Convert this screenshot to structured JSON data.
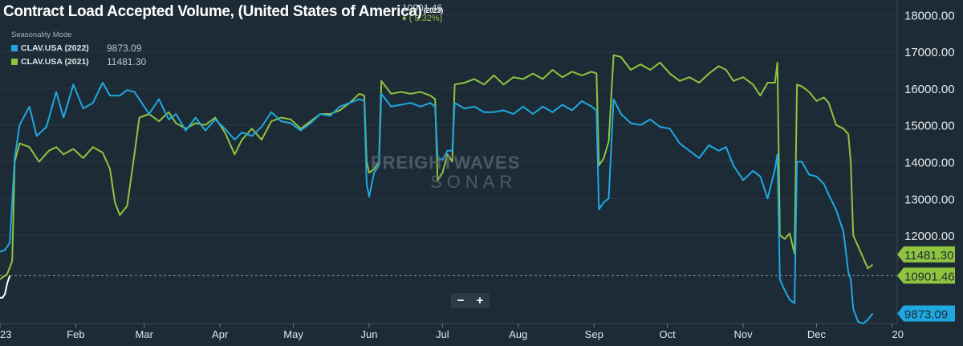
{
  "title": "Contract Load Accepted Volume, (United States of America)",
  "title_year": "(2023)",
  "headline": {
    "value": "10901.46",
    "change": "( 5.32%)",
    "change_icon": "up-arrow-icon"
  },
  "legend": {
    "mode_label": "Seasonality Mode",
    "items": [
      {
        "name": "CLAV.USA (2022)",
        "value": "9873.09",
        "color": "#1fa8e0"
      },
      {
        "name": "CLAV.USA (2021)",
        "value": "11481.30",
        "color": "#8fc43f"
      }
    ]
  },
  "zoom": {
    "minus": "−",
    "plus": "+"
  },
  "watermark": {
    "line1": "FREIGHTWAVES",
    "line2": "SONAR"
  },
  "colors": {
    "background": "#1d2b36",
    "series2023": "#ffffff",
    "series2022": "#1fa8e0",
    "series2021": "#8fc43f",
    "grid": "#2a3a46"
  },
  "chart_data": {
    "type": "line",
    "x_tick_labels": [
      "23",
      "Feb",
      "Mar",
      "Apr",
      "May",
      "Jun",
      "Jul",
      "Aug",
      "Sep",
      "Oct",
      "Nov",
      "Dec",
      "20"
    ],
    "x_tick_days": [
      0,
      31,
      59,
      90,
      120,
      151,
      181,
      212,
      243,
      273,
      304,
      334,
      365
    ],
    "y_tick_labels": [
      "18000.00",
      "17000.00",
      "16000.00",
      "15000.00",
      "14000.00",
      "13000.00",
      "12000.00"
    ],
    "y_ticks": [
      18000,
      17000,
      16000,
      15000,
      14000,
      13000,
      12000
    ],
    "y_label_partial": "1",
    "ylim": [
      9600,
      18400
    ],
    "xlim": [
      0,
      367
    ],
    "grid": "horizontal",
    "reference_line": 10901.46,
    "badges": [
      {
        "text": "11481.30",
        "value": 11481.3,
        "color": "#8fc43f"
      },
      {
        "text": "10901.46",
        "value": 10901.46,
        "color": "#8fc43f"
      },
      {
        "text": "9873.09",
        "value": 9873.09,
        "color": "#1fa8e0"
      }
    ],
    "series": [
      {
        "name": "CLAV.USA (2021)",
        "color": "#8fc43f",
        "points": [
          [
            0,
            10800
          ],
          [
            3,
            10950
          ],
          [
            5,
            11300
          ],
          [
            6,
            14000
          ],
          [
            8,
            14500
          ],
          [
            12,
            14400
          ],
          [
            16,
            14000
          ],
          [
            20,
            14300
          ],
          [
            23,
            14400
          ],
          [
            26,
            14200
          ],
          [
            30,
            14350
          ],
          [
            34,
            14100
          ],
          [
            38,
            14400
          ],
          [
            42,
            14250
          ],
          [
            45,
            13800
          ],
          [
            47,
            12900
          ],
          [
            49,
            12550
          ],
          [
            52,
            12800
          ],
          [
            55,
            14200
          ],
          [
            57,
            15200
          ],
          [
            61,
            15300
          ],
          [
            65,
            15100
          ],
          [
            69,
            15350
          ],
          [
            72,
            15050
          ],
          [
            76,
            14900
          ],
          [
            80,
            15050
          ],
          [
            84,
            15000
          ],
          [
            88,
            15200
          ],
          [
            92,
            14800
          ],
          [
            96,
            14200
          ],
          [
            99,
            14600
          ],
          [
            103,
            14900
          ],
          [
            107,
            14600
          ],
          [
            111,
            15100
          ],
          [
            115,
            15200
          ],
          [
            119,
            15150
          ],
          [
            123,
            14900
          ],
          [
            127,
            15100
          ],
          [
            131,
            15300
          ],
          [
            135,
            15300
          ],
          [
            139,
            15400
          ],
          [
            143,
            15600
          ],
          [
            147,
            15850
          ],
          [
            149,
            15800
          ],
          [
            150,
            14000
          ],
          [
            151,
            13700
          ],
          [
            153,
            13800
          ],
          [
            155,
            14000
          ],
          [
            156,
            16200
          ],
          [
            160,
            15850
          ],
          [
            164,
            15900
          ],
          [
            168,
            15850
          ],
          [
            172,
            15900
          ],
          [
            176,
            15800
          ],
          [
            178,
            15700
          ],
          [
            179,
            13500
          ],
          [
            181,
            13700
          ],
          [
            183,
            14200
          ],
          [
            185,
            14000
          ],
          [
            186,
            16100
          ],
          [
            190,
            16150
          ],
          [
            194,
            16250
          ],
          [
            198,
            16100
          ],
          [
            202,
            16350
          ],
          [
            206,
            16100
          ],
          [
            210,
            16300
          ],
          [
            214,
            16250
          ],
          [
            218,
            16400
          ],
          [
            222,
            16250
          ],
          [
            226,
            16500
          ],
          [
            230,
            16300
          ],
          [
            234,
            16450
          ],
          [
            238,
            16350
          ],
          [
            242,
            16450
          ],
          [
            244,
            16400
          ],
          [
            245,
            13900
          ],
          [
            247,
            14100
          ],
          [
            249,
            14550
          ],
          [
            251,
            16900
          ],
          [
            254,
            16850
          ],
          [
            258,
            16500
          ],
          [
            262,
            16650
          ],
          [
            266,
            16500
          ],
          [
            270,
            16700
          ],
          [
            274,
            16400
          ],
          [
            278,
            16200
          ],
          [
            282,
            16300
          ],
          [
            286,
            16150
          ],
          [
            290,
            16400
          ],
          [
            294,
            16600
          ],
          [
            297,
            16500
          ],
          [
            300,
            16200
          ],
          [
            304,
            16300
          ],
          [
            308,
            16100
          ],
          [
            311,
            15800
          ],
          [
            314,
            16150
          ],
          [
            317,
            16150
          ],
          [
            318,
            16700
          ],
          [
            319,
            12000
          ],
          [
            321,
            11900
          ],
          [
            323,
            12050
          ],
          [
            325,
            11500
          ],
          [
            326,
            16100
          ],
          [
            328,
            16050
          ],
          [
            331,
            15900
          ],
          [
            334,
            15650
          ],
          [
            337,
            15750
          ],
          [
            339,
            15600
          ],
          [
            342,
            15000
          ],
          [
            345,
            14900
          ],
          [
            347,
            14750
          ],
          [
            348,
            14000
          ],
          [
            349,
            12000
          ],
          [
            351,
            11700
          ],
          [
            353,
            11400
          ],
          [
            355,
            11100
          ],
          [
            357,
            11200
          ]
        ]
      },
      {
        "name": "CLAV.USA (2022)",
        "color": "#1fa8e0",
        "points": [
          [
            0,
            11550
          ],
          [
            2,
            11600
          ],
          [
            4,
            11800
          ],
          [
            6,
            14100
          ],
          [
            8,
            15000
          ],
          [
            12,
            15500
          ],
          [
            15,
            14700
          ],
          [
            19,
            14950
          ],
          [
            23,
            15900
          ],
          [
            26,
            15200
          ],
          [
            30,
            16100
          ],
          [
            34,
            15450
          ],
          [
            38,
            15600
          ],
          [
            42,
            16150
          ],
          [
            45,
            15800
          ],
          [
            49,
            15800
          ],
          [
            52,
            15950
          ],
          [
            55,
            15900
          ],
          [
            57,
            15700
          ],
          [
            61,
            15300
          ],
          [
            65,
            15700
          ],
          [
            69,
            15150
          ],
          [
            72,
            15300
          ],
          [
            76,
            14850
          ],
          [
            80,
            15200
          ],
          [
            84,
            14850
          ],
          [
            88,
            15150
          ],
          [
            92,
            14900
          ],
          [
            96,
            14600
          ],
          [
            99,
            14800
          ],
          [
            103,
            14700
          ],
          [
            107,
            14950
          ],
          [
            111,
            15350
          ],
          [
            115,
            15100
          ],
          [
            119,
            15050
          ],
          [
            123,
            14850
          ],
          [
            127,
            15050
          ],
          [
            131,
            15300
          ],
          [
            135,
            15250
          ],
          [
            139,
            15500
          ],
          [
            143,
            15600
          ],
          [
            147,
            15700
          ],
          [
            149,
            15650
          ],
          [
            150,
            13400
          ],
          [
            151,
            13050
          ],
          [
            153,
            13700
          ],
          [
            155,
            13900
          ],
          [
            156,
            15850
          ],
          [
            160,
            15500
          ],
          [
            164,
            15550
          ],
          [
            168,
            15600
          ],
          [
            172,
            15500
          ],
          [
            176,
            15600
          ],
          [
            178,
            15500
          ],
          [
            179,
            14100
          ],
          [
            181,
            14050
          ],
          [
            183,
            14300
          ],
          [
            185,
            14300
          ],
          [
            186,
            15600
          ],
          [
            190,
            15450
          ],
          [
            194,
            15500
          ],
          [
            198,
            15350
          ],
          [
            202,
            15350
          ],
          [
            206,
            15400
          ],
          [
            210,
            15300
          ],
          [
            214,
            15500
          ],
          [
            218,
            15300
          ],
          [
            222,
            15500
          ],
          [
            226,
            15350
          ],
          [
            230,
            15550
          ],
          [
            234,
            15400
          ],
          [
            238,
            15650
          ],
          [
            242,
            15500
          ],
          [
            244,
            15400
          ],
          [
            245,
            12700
          ],
          [
            247,
            12900
          ],
          [
            249,
            13000
          ],
          [
            251,
            15700
          ],
          [
            254,
            15300
          ],
          [
            258,
            15050
          ],
          [
            262,
            15000
          ],
          [
            266,
            15150
          ],
          [
            270,
            14950
          ],
          [
            274,
            14900
          ],
          [
            278,
            14500
          ],
          [
            282,
            14300
          ],
          [
            286,
            14100
          ],
          [
            290,
            14450
          ],
          [
            294,
            14300
          ],
          [
            297,
            14400
          ],
          [
            300,
            13900
          ],
          [
            304,
            13500
          ],
          [
            308,
            13750
          ],
          [
            311,
            13600
          ],
          [
            314,
            13000
          ],
          [
            317,
            13800
          ],
          [
            318,
            14200
          ],
          [
            319,
            10800
          ],
          [
            321,
            10500
          ],
          [
            323,
            10250
          ],
          [
            325,
            10150
          ],
          [
            326,
            14000
          ],
          [
            328,
            14000
          ],
          [
            331,
            13650
          ],
          [
            334,
            13600
          ],
          [
            337,
            13400
          ],
          [
            339,
            13100
          ],
          [
            342,
            12700
          ],
          [
            345,
            12100
          ],
          [
            347,
            11000
          ],
          [
            348,
            10800
          ],
          [
            349,
            10000
          ],
          [
            351,
            9650
          ],
          [
            353,
            9600
          ],
          [
            355,
            9700
          ],
          [
            357,
            9873.09
          ]
        ]
      },
      {
        "name": "CLAV.USA (2023)",
        "color": "#ffffff",
        "points": [
          [
            0,
            10300
          ],
          [
            1,
            10300
          ],
          [
            2,
            10400
          ],
          [
            3,
            10700
          ],
          [
            4,
            10901.46
          ]
        ]
      }
    ]
  }
}
